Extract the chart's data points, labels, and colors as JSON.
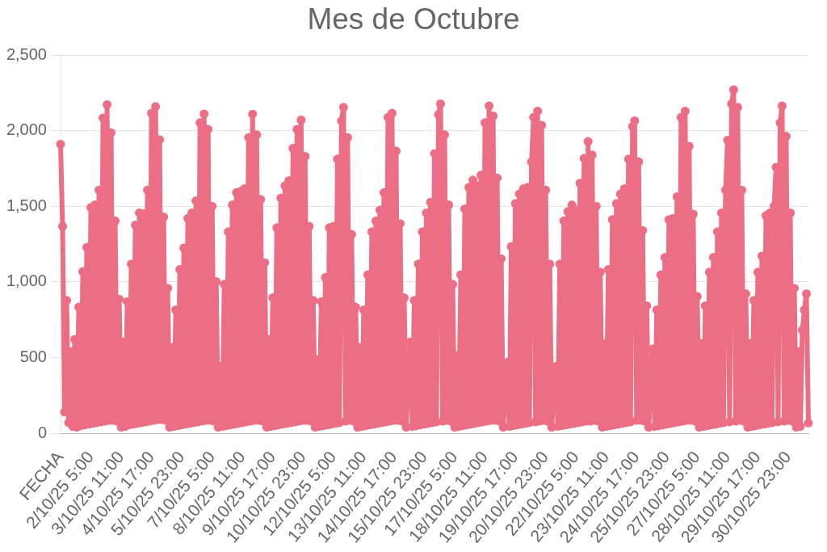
{
  "chart_data": {
    "type": "line",
    "title": "Mes de Octubre",
    "categories": [
      "FECHA",
      null,
      null,
      null,
      null,
      null,
      null,
      null,
      null,
      null,
      null,
      null,
      null,
      null,
      null,
      "2/10/25 5:00",
      null,
      null,
      null,
      null,
      null,
      null,
      null,
      null,
      null,
      null,
      null,
      null,
      null,
      null,
      "3/10/25 11:00",
      null,
      null,
      null,
      null,
      null,
      null,
      null,
      null,
      null,
      null,
      null,
      null,
      null,
      null,
      "4/10/25 17:00",
      null,
      null,
      null,
      null,
      null,
      null,
      null,
      null,
      null,
      null,
      null,
      null,
      null,
      null,
      "5/10/25 23:00",
      null,
      null,
      null,
      null,
      null,
      null,
      null,
      null,
      null,
      null,
      null,
      null,
      null,
      null,
      "7/10/25 5:00",
      null,
      null,
      null,
      null,
      null,
      null,
      null,
      null,
      null,
      null,
      null,
      null,
      null,
      null,
      "8/10/25 11:00",
      null,
      null,
      null,
      null,
      null,
      null,
      null,
      null,
      null,
      null,
      null,
      null,
      null,
      null,
      "9/10/25 17:00",
      null,
      null,
      null,
      null,
      null,
      null,
      null,
      null,
      null,
      null,
      null,
      null,
      null,
      null,
      "10/10/25 23:00",
      null,
      null,
      null,
      null,
      null,
      null,
      null,
      null,
      null,
      null,
      null,
      null,
      null,
      null,
      "12/10/25 5:00",
      null,
      null,
      null,
      null,
      null,
      null,
      null,
      null,
      null,
      null,
      null,
      null,
      null,
      null,
      "13/10/25 11:00",
      null,
      null,
      null,
      null,
      null,
      null,
      null,
      null,
      null,
      null,
      null,
      null,
      null,
      null,
      "14/10/25 17:00",
      null,
      null,
      null,
      null,
      null,
      null,
      null,
      null,
      null,
      null,
      null,
      null,
      null,
      null,
      "15/10/25 23:00",
      null,
      null,
      null,
      null,
      null,
      null,
      null,
      null,
      null,
      null,
      null,
      null,
      null,
      null,
      "17/10/25 5:00",
      null,
      null,
      null,
      null,
      null,
      null,
      null,
      null,
      null,
      null,
      null,
      null,
      null,
      null,
      "18/10/25 11:00",
      null,
      null,
      null,
      null,
      null,
      null,
      null,
      null,
      null,
      null,
      null,
      null,
      null,
      null,
      "19/10/25 17:00",
      null,
      null,
      null,
      null,
      null,
      null,
      null,
      null,
      null,
      null,
      null,
      null,
      null,
      null,
      "20/10/25 23:00",
      null,
      null,
      null,
      null,
      null,
      null,
      null,
      null,
      null,
      null,
      null,
      null,
      null,
      null,
      "22/10/25 5:00",
      null,
      null,
      null,
      null,
      null,
      null,
      null,
      null,
      null,
      null,
      null,
      null,
      null,
      null,
      "23/10/25 11:00",
      null,
      null,
      null,
      null,
      null,
      null,
      null,
      null,
      null,
      null,
      null,
      null,
      null,
      null,
      "24/10/25 17:00",
      null,
      null,
      null,
      null,
      null,
      null,
      null,
      null,
      null,
      null,
      null,
      null,
      null,
      null,
      "25/10/25 23:00",
      null,
      null,
      null,
      null,
      null,
      null,
      null,
      null,
      null,
      null,
      null,
      null,
      null,
      null,
      "27/10/25 5:00",
      null,
      null,
      null,
      null,
      null,
      null,
      null,
      null,
      null,
      null,
      null,
      null,
      null,
      null,
      "28/10/25 11:00",
      null,
      null,
      null,
      null,
      null,
      null,
      null,
      null,
      null,
      null,
      null,
      null,
      null,
      null,
      "29/10/25 17:00",
      null,
      null,
      null,
      null,
      null,
      null,
      null,
      null,
      null,
      null,
      null,
      null,
      null,
      null,
      "30/10/25 23:00",
      null,
      null,
      null,
      null,
      null,
      null,
      null,
      null,
      null,
      null
    ],
    "values": [
      1910,
      1367,
      140,
      878,
      70,
      539,
      45,
      620,
      40,
      833,
      50,
      1068,
      55,
      1228,
      60,
      1492,
      65,
      1509,
      70,
      1607,
      75,
      2083,
      80,
      2172,
      85,
      1986,
      85,
      1403,
      80,
      886,
      40,
      602,
      45,
      869,
      55,
      1118,
      60,
      1376,
      65,
      1456,
      70,
      1450,
      75,
      1607,
      80,
      2115,
      85,
      2159,
      90,
      1940,
      90,
      1429,
      85,
      958,
      40,
      566,
      45,
      815,
      50,
      1082,
      55,
      1225,
      60,
      1420,
      65,
      1456,
      70,
      1536,
      75,
      2052,
      80,
      2110,
      85,
      2008,
      85,
      1500,
      80,
      1002,
      40,
      441,
      45,
      984,
      50,
      1331,
      55,
      1509,
      60,
      1590,
      65,
      1598,
      70,
      1616,
      75,
      1954,
      80,
      2109,
      85,
      1972,
      85,
      1545,
      80,
      1127,
      40,
      619,
      45,
      895,
      50,
      1358,
      55,
      1554,
      60,
      1634,
      65,
      1670,
      70,
      1883,
      75,
      2008,
      80,
      2070,
      85,
      1830,
      85,
      1367,
      80,
      878,
      40,
      486,
      45,
      869,
      50,
      1029,
      55,
      1358,
      60,
      1367,
      65,
      1812,
      70,
      2065,
      2154,
      80,
      1954,
      85,
      1314,
      80,
      833,
      40,
      566,
      45,
      815,
      50,
      1047,
      55,
      1331,
      60,
      1403,
      65,
      1474,
      70,
      1590,
      75,
      2088,
      80,
      2115,
      85,
      1865,
      85,
      1385,
      80,
      895,
      40,
      400,
      602,
      45,
      878,
      50,
      1118,
      55,
      1331,
      60,
      1456,
      65,
      1527,
      70,
      1848,
      75,
      2106,
      2177,
      80,
      1972,
      85,
      1509,
      80,
      984,
      40,
      513,
      45,
      1047,
      50,
      1483,
      55,
      1625,
      60,
      1673,
      65,
      1634,
      70,
      1705,
      75,
      2052,
      80,
      2163,
      85,
      2097,
      85,
      1687,
      80,
      1153,
      40,
      300,
      468,
      45,
      1234,
      50,
      1518,
      55,
      1581,
      60,
      1616,
      65,
      1625,
      70,
      1794,
      2088,
      75,
      2129,
      80,
      2035,
      85,
      1607,
      80,
      1118,
      40,
      300,
      441,
      45,
      1118,
      50,
      1403,
      55,
      1465,
      60,
      1509,
      65,
      1474,
      70,
      1652,
      75,
      1816,
      80,
      1928,
      80,
      1839,
      85,
      1500,
      80,
      1064,
      40,
      593,
      45,
      1082,
      50,
      1412,
      55,
      1518,
      60,
      1581,
      65,
      1616,
      70,
      1812,
      75,
      2026,
      2065,
      85,
      1794,
      85,
      1340,
      80,
      842,
      40,
      300,
      557,
      45,
      815,
      50,
      1047,
      55,
      1162,
      60,
      1412,
      65,
      1420,
      70,
      1563,
      75,
      2088,
      80,
      2129,
      85,
      1897,
      85,
      1447,
      80,
      904,
      40,
      593,
      45,
      842,
      50,
      1064,
      55,
      1162,
      60,
      1331,
      65,
      1456,
      70,
      1607,
      1937,
      75,
      2177,
      2270,
      80,
      2154,
      85,
      1607,
      80,
      922,
      40,
      593,
      45,
      878,
      50,
      1064,
      55,
      1171,
      60,
      1438,
      65,
      1456,
      70,
      1500,
      1758,
      75,
      2052,
      2163,
      80,
      1963,
      85,
      1456,
      80,
      958,
      40,
      539,
      45,
      682,
      815,
      922,
      68
    ],
    "color": "#ec6e85",
    "ylim": [
      0,
      2500
    ],
    "yticks": [
      0,
      500,
      {
        "value": 1000,
        "label": "1,000"
      },
      {
        "value": 1500,
        "label": "1,500"
      },
      {
        "value": 2000,
        "label": "2,000"
      },
      {
        "value": 2500,
        "label": "2,500"
      }
    ],
    "grid": "y",
    "marker": "circle",
    "line_style": "solid"
  }
}
